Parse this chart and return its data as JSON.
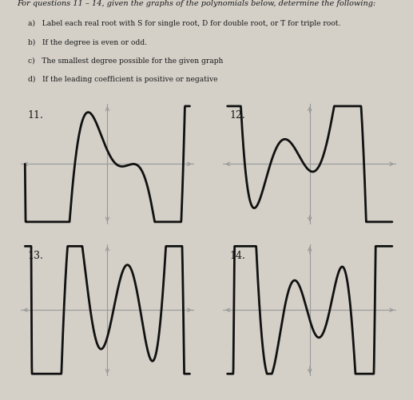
{
  "background_color": "#d4d0c8",
  "text_color": "#1a1a1a",
  "title_text": "For questions 11 – 14, given the graphs of the polynomials below, determine the following:",
  "instructions": [
    "a)   Label each real root with S for single root, D for double root, or T for triple root.",
    "b)   If the degree is even or odd.",
    "c)   The smallest degree possible for the given graph",
    "d)   If the leading coefficient is positive or negative"
  ],
  "axis_color": "#999999",
  "curve_color": "#111111",
  "curve_linewidth": 2.0,
  "label_fontsize": 9,
  "text_fontsize": 7.0,
  "instr_fontsize": 6.6
}
